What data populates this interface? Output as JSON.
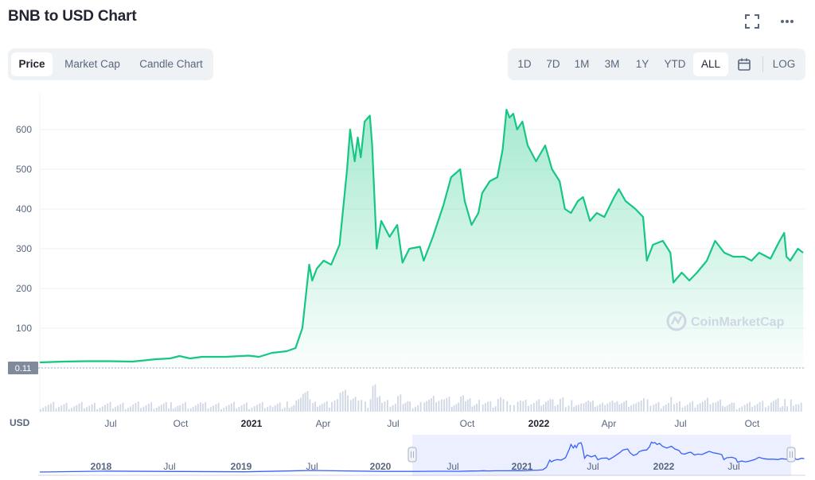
{
  "title": "BNB to USD Chart",
  "icons": {
    "fullscreen": "fullscreen-icon",
    "more": "more-icon",
    "calendar": "calendar-icon"
  },
  "tabs": [
    {
      "label": "Price",
      "active": true
    },
    {
      "label": "Market Cap",
      "active": false
    },
    {
      "label": "Candle Chart",
      "active": false
    }
  ],
  "ranges": [
    {
      "label": "1D",
      "active": false
    },
    {
      "label": "7D",
      "active": false
    },
    {
      "label": "1M",
      "active": false
    },
    {
      "label": "3M",
      "active": false
    },
    {
      "label": "1Y",
      "active": false
    },
    {
      "label": "YTD",
      "active": false
    },
    {
      "label": "ALL",
      "active": true
    }
  ],
  "log_label": "LOG",
  "currency_label": "USD",
  "current_low_label": "0.11",
  "watermark": "CoinMarketCap",
  "colors": {
    "line": "#16c784",
    "volume": "#cfd6e4",
    "nav_line": "#3861fb",
    "text": "#58667e"
  },
  "chart_data": {
    "type": "area",
    "title": "BNB to USD Chart",
    "ylabel": "",
    "y_ticks": [
      100,
      200,
      300,
      400,
      500,
      600
    ],
    "ylim": [
      0,
      680
    ],
    "x_ticks": [
      {
        "label": "Jul",
        "bold": false
      },
      {
        "label": "Oct",
        "bold": false
      },
      {
        "label": "2021",
        "bold": true
      },
      {
        "label": "Apr",
        "bold": false
      },
      {
        "label": "Jul",
        "bold": false
      },
      {
        "label": "Oct",
        "bold": false
      },
      {
        "label": "2022",
        "bold": true
      },
      {
        "label": "Apr",
        "bold": false
      },
      {
        "label": "Jul",
        "bold": false
      },
      {
        "label": "Oct",
        "bold": false
      }
    ],
    "series": [
      {
        "values": [
          {
            "x": "2020-03-01",
            "y": 14
          },
          {
            "x": "2020-04-01",
            "y": 16
          },
          {
            "x": "2020-05-01",
            "y": 17
          },
          {
            "x": "2020-06-01",
            "y": 17
          },
          {
            "x": "2020-07-01",
            "y": 16
          },
          {
            "x": "2020-08-01",
            "y": 22
          },
          {
            "x": "2020-08-20",
            "y": 24
          },
          {
            "x": "2020-09-01",
            "y": 30
          },
          {
            "x": "2020-09-15",
            "y": 24
          },
          {
            "x": "2020-10-01",
            "y": 28
          },
          {
            "x": "2020-11-01",
            "y": 28
          },
          {
            "x": "2020-12-01",
            "y": 31
          },
          {
            "x": "2020-12-15",
            "y": 28
          },
          {
            "x": "2021-01-01",
            "y": 38
          },
          {
            "x": "2021-01-20",
            "y": 42
          },
          {
            "x": "2021-02-01",
            "y": 50
          },
          {
            "x": "2021-02-10",
            "y": 100
          },
          {
            "x": "2021-02-19",
            "y": 260
          },
          {
            "x": "2021-02-23",
            "y": 220
          },
          {
            "x": "2021-03-01",
            "y": 250
          },
          {
            "x": "2021-03-10",
            "y": 270
          },
          {
            "x": "2021-03-20",
            "y": 260
          },
          {
            "x": "2021-03-31",
            "y": 310
          },
          {
            "x": "2021-04-10",
            "y": 500
          },
          {
            "x": "2021-04-14",
            "y": 600
          },
          {
            "x": "2021-04-20",
            "y": 520
          },
          {
            "x": "2021-04-24",
            "y": 580
          },
          {
            "x": "2021-04-28",
            "y": 530
          },
          {
            "x": "2021-05-03",
            "y": 620
          },
          {
            "x": "2021-05-10",
            "y": 635
          },
          {
            "x": "2021-05-13",
            "y": 560
          },
          {
            "x": "2021-05-19",
            "y": 300
          },
          {
            "x": "2021-05-25",
            "y": 370
          },
          {
            "x": "2021-06-05",
            "y": 330
          },
          {
            "x": "2021-06-15",
            "y": 360
          },
          {
            "x": "2021-06-22",
            "y": 265
          },
          {
            "x": "2021-07-01",
            "y": 300
          },
          {
            "x": "2021-07-15",
            "y": 305
          },
          {
            "x": "2021-07-20",
            "y": 270
          },
          {
            "x": "2021-08-01",
            "y": 330
          },
          {
            "x": "2021-08-15",
            "y": 410
          },
          {
            "x": "2021-08-25",
            "y": 480
          },
          {
            "x": "2021-09-06",
            "y": 500
          },
          {
            "x": "2021-09-12",
            "y": 420
          },
          {
            "x": "2021-09-21",
            "y": 360
          },
          {
            "x": "2021-09-30",
            "y": 390
          },
          {
            "x": "2021-10-05",
            "y": 440
          },
          {
            "x": "2021-10-15",
            "y": 470
          },
          {
            "x": "2021-10-25",
            "y": 480
          },
          {
            "x": "2021-11-01",
            "y": 550
          },
          {
            "x": "2021-11-06",
            "y": 650
          },
          {
            "x": "2021-11-10",
            "y": 630
          },
          {
            "x": "2021-11-15",
            "y": 640
          },
          {
            "x": "2021-11-20",
            "y": 600
          },
          {
            "x": "2021-11-27",
            "y": 620
          },
          {
            "x": "2021-12-04",
            "y": 560
          },
          {
            "x": "2021-12-15",
            "y": 520
          },
          {
            "x": "2021-12-27",
            "y": 560
          },
          {
            "x": "2022-01-05",
            "y": 500
          },
          {
            "x": "2022-01-15",
            "y": 470
          },
          {
            "x": "2022-01-22",
            "y": 400
          },
          {
            "x": "2022-01-30",
            "y": 390
          },
          {
            "x": "2022-02-08",
            "y": 420
          },
          {
            "x": "2022-02-15",
            "y": 430
          },
          {
            "x": "2022-02-24",
            "y": 370
          },
          {
            "x": "2022-03-05",
            "y": 390
          },
          {
            "x": "2022-03-15",
            "y": 380
          },
          {
            "x": "2022-03-28",
            "y": 430
          },
          {
            "x": "2022-04-03",
            "y": 450
          },
          {
            "x": "2022-04-12",
            "y": 420
          },
          {
            "x": "2022-04-25",
            "y": 400
          },
          {
            "x": "2022-05-05",
            "y": 380
          },
          {
            "x": "2022-05-10",
            "y": 270
          },
          {
            "x": "2022-05-18",
            "y": 310
          },
          {
            "x": "2022-05-31",
            "y": 320
          },
          {
            "x": "2022-06-10",
            "y": 290
          },
          {
            "x": "2022-06-14",
            "y": 215
          },
          {
            "x": "2022-06-25",
            "y": 240
          },
          {
            "x": "2022-07-05",
            "y": 220
          },
          {
            "x": "2022-07-15",
            "y": 240
          },
          {
            "x": "2022-07-28",
            "y": 270
          },
          {
            "x": "2022-08-08",
            "y": 320
          },
          {
            "x": "2022-08-20",
            "y": 290
          },
          {
            "x": "2022-09-01",
            "y": 280
          },
          {
            "x": "2022-09-15",
            "y": 280
          },
          {
            "x": "2022-09-25",
            "y": 270
          },
          {
            "x": "2022-10-05",
            "y": 290
          },
          {
            "x": "2022-10-20",
            "y": 275
          },
          {
            "x": "2022-11-01",
            "y": 320
          },
          {
            "x": "2022-11-07",
            "y": 340
          },
          {
            "x": "2022-11-10",
            "y": 280
          },
          {
            "x": "2022-11-15",
            "y": 270
          },
          {
            "x": "2022-11-25",
            "y": 300
          },
          {
            "x": "2022-12-02",
            "y": 290
          }
        ]
      }
    ],
    "grid": true,
    "log_scale": false
  },
  "navigator": {
    "x_ticks": [
      {
        "label": "2018",
        "bold": true
      },
      {
        "label": "Jul",
        "bold": false
      },
      {
        "label": "2019",
        "bold": true
      },
      {
        "label": "Jul",
        "bold": false
      },
      {
        "label": "2020",
        "bold": true
      },
      {
        "label": "Jul",
        "bold": false
      },
      {
        "label": "2021",
        "bold": true
      },
      {
        "label": "Jul",
        "bold": false
      },
      {
        "label": "2022",
        "bold": true
      },
      {
        "label": "Jul",
        "bold": false
      }
    ]
  }
}
